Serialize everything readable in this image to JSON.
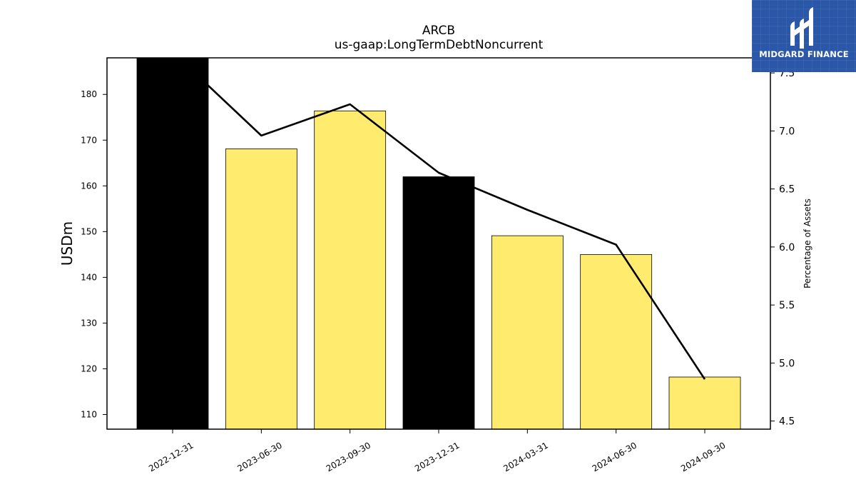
{
  "brand": {
    "name": "MIDGARD FINANCE",
    "bg_color": "#2b57a8"
  },
  "chart_data": {
    "type": "bar",
    "title": "ARCB",
    "subtitle": "us-gaap:LongTermDebtNoncurrent",
    "categories": [
      "2022-12-31",
      "2023-06-30",
      "2023-09-30",
      "2023-12-31",
      "2024-03-31",
      "2024-06-30",
      "2024-09-30"
    ],
    "ylabel": "USDm",
    "ylabel_right": "Percentage of Assets",
    "ylim": [
      106.8,
      188.0
    ],
    "ylim_right": [
      4.43,
      7.63
    ],
    "yticks": [
      110,
      120,
      130,
      140,
      150,
      160,
      170,
      180
    ],
    "yticks_right": [
      "4.5",
      "5.0",
      "5.5",
      "6.0",
      "6.5",
      "7.0",
      "7.5"
    ],
    "series": [
      {
        "kind": "bar",
        "values": [
          188.0,
          168.1,
          176.4,
          162.0,
          149.1,
          145.0,
          118.2
        ],
        "colors": [
          "#000000",
          "#ffec6e",
          "#ffec6e",
          "#000000",
          "#ffec6e",
          "#ffec6e",
          "#ffec6e"
        ]
      },
      {
        "kind": "line",
        "axis": "right",
        "color": "#000000",
        "values": [
          7.68,
          6.96,
          7.23,
          6.64,
          6.32,
          6.02,
          4.86
        ]
      }
    ],
    "grid": false
  }
}
